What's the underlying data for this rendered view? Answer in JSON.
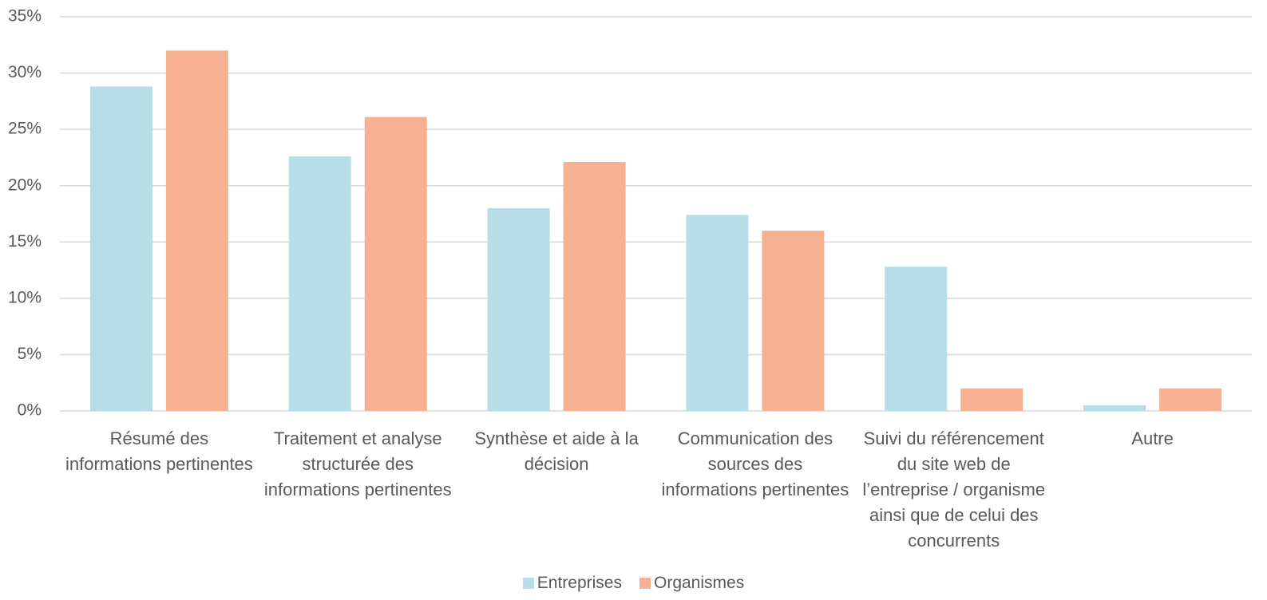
{
  "chart_data": {
    "type": "bar",
    "categories": [
      "Résumé des informations pertinentes",
      "Traitement et analyse structurée des informations pertinentes",
      "Synthèse et aide à la décision",
      "Communication des sources des informations pertinentes",
      "Suivi du référencement du site web de l’entreprise / organisme ainsi que de celui des concurrents",
      "Autre"
    ],
    "series": [
      {
        "name": "Entreprises",
        "color": "#b7dde6",
        "values": [
          28.8,
          22.6,
          18.0,
          17.4,
          12.8,
          0.5
        ]
      },
      {
        "name": "Organismes",
        "color": "#f6b092",
        "values": [
          32.0,
          26.1,
          22.1,
          16.0,
          2.0,
          2.0
        ]
      }
    ],
    "ylim": [
      0,
      35
    ],
    "yticks": [
      {
        "value": 0,
        "label": "0%"
      },
      {
        "value": 5,
        "label": "5%"
      },
      {
        "value": 10,
        "label": "10%"
      },
      {
        "value": 15,
        "label": "15%"
      },
      {
        "value": 20,
        "label": "20%"
      },
      {
        "value": 25,
        "label": "25%"
      },
      {
        "value": 30,
        "label": "30%"
      },
      {
        "value": 35,
        "label": "35%"
      }
    ],
    "grid": true,
    "legend": "bottom"
  }
}
